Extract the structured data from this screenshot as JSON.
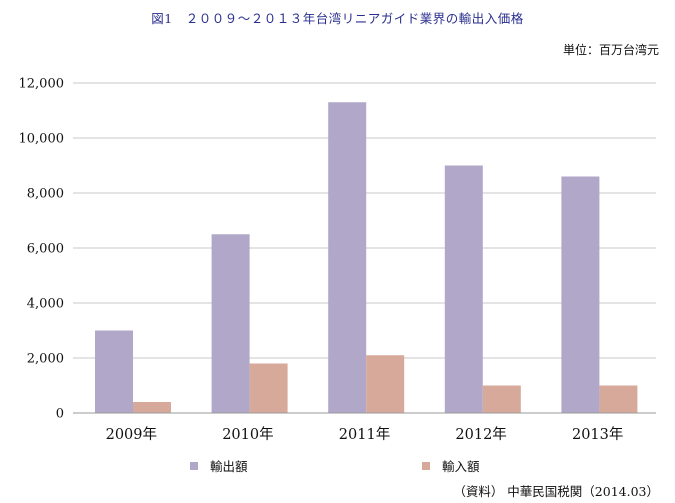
{
  "title": "図1　２００９～２０１３年台湾リニアガイド業界の輸出入価格",
  "unit": "単位：百万台湾元",
  "source": "（資料） 中華民国税関（2014.03）",
  "colors": {
    "export": "#b0a7c9",
    "import": "#d6a99b"
  },
  "chart_data": {
    "type": "bar",
    "title": "図1　２００９～２０１３年台湾リニアガイド業界の輸出入価格",
    "xlabel": "",
    "ylabel": "",
    "unit": "単位：百万台湾元",
    "categories": [
      "2009年",
      "2010年",
      "2011年",
      "2012年",
      "2013年"
    ],
    "series": [
      {
        "name": "輸出額",
        "values": [
          3000,
          6500,
          11300,
          9000,
          8600
        ]
      },
      {
        "name": "輸入額",
        "values": [
          400,
          1800,
          2100,
          1000,
          1000
        ]
      }
    ],
    "ylim": [
      0,
      12000
    ],
    "yticks": [
      "0",
      "2,000",
      "4,000",
      "6,000",
      "8,000",
      "10,000",
      "12,000"
    ],
    "grid": true,
    "legend": "bottom"
  }
}
